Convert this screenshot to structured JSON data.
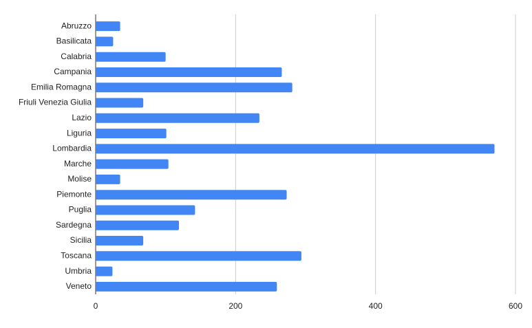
{
  "chart_data": {
    "type": "hbar",
    "categories": [
      "Abruzzo",
      "Basilicata",
      "Calabria",
      "Campania",
      "Emilia Romagna",
      "Friuli Venezia Giulia",
      "Lazio",
      "Liguria",
      "Lombardia",
      "Marche",
      "Molise",
      "Piemonte",
      "Puglia",
      "Sardegna",
      "Sicilia",
      "Toscana",
      "Umbria",
      "Veneto"
    ],
    "values": [
      35,
      25,
      100,
      266,
      281,
      68,
      234,
      101,
      570,
      104,
      35,
      273,
      142,
      119,
      68,
      294,
      24,
      259
    ],
    "color": "#4285f4",
    "xlim": [
      0,
      600
    ],
    "xticks": [
      0,
      200,
      400,
      600
    ],
    "grid": true
  }
}
